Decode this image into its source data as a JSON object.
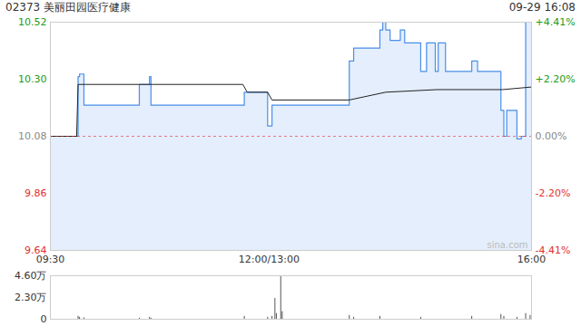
{
  "chart_data": [
    {
      "type": "line",
      "title": "02373 美丽田园医疗健康",
      "subtitle": "09-29 16:08",
      "watermark": "sina.com",
      "prev_close": 10.08,
      "xlim": [
        0,
        330
      ],
      "xticks": [
        {
          "value": 0,
          "label": "09:30"
        },
        {
          "value": 150,
          "label": "12:00/13:00"
        },
        {
          "value": 330,
          "label": "16:00"
        }
      ],
      "ylim": [
        9.64,
        10.52
      ],
      "yticks": [
        9.64,
        9.86,
        10.08,
        {
          "value": 10.3,
          "label": "10.30"
        },
        10.52
      ],
      "y2lim": [
        -4.41,
        4.41
      ],
      "y2ticks": [
        {
          "value": -4.41,
          "label": "-4.41%"
        },
        {
          "value": -2.2,
          "label": "-2.20%"
        },
        {
          "value": 0,
          "label": "0.00%"
        },
        {
          "value": 2.2,
          "label": "+2.20%"
        },
        {
          "value": 4.41,
          "label": "+4.41%"
        }
      ],
      "grid": false,
      "series": [
        {
          "type": "area",
          "color": "#4a8fe8",
          "x": [
            0,
            19,
            20,
            23,
            61,
            68,
            69,
            133,
            149,
            152,
            205,
            208,
            226,
            228,
            230,
            233,
            240,
            243,
            254,
            258,
            264,
            266,
            271,
            289,
            293,
            309,
            311,
            313,
            320,
            323,
            326,
            330
          ],
          "values": [
            10.08,
            10.31,
            10.32,
            10.2,
            10.28,
            10.31,
            10.2,
            10.25,
            10.12,
            10.2,
            10.37,
            10.42,
            10.49,
            10.52,
            10.49,
            10.45,
            10.49,
            10.44,
            10.33,
            10.44,
            10.33,
            10.44,
            10.33,
            10.37,
            10.33,
            10.18,
            10.08,
            10.18,
            10.07,
            10.08,
            10.52,
            10.52
          ]
        },
        {
          "type": "line",
          "color": "#222222",
          "x": [
            0,
            18,
            19,
            132,
            135,
            149,
            152,
            205,
            230,
            265,
            310,
            330
          ],
          "values": [
            10.08,
            10.08,
            10.28,
            10.28,
            10.25,
            10.25,
            10.22,
            10.22,
            10.25,
            10.26,
            10.26,
            10.27
          ]
        }
      ]
    },
    {
      "type": "bar",
      "xlim": [
        0,
        330
      ],
      "ylim": [
        0,
        4.6
      ],
      "yticks": [
        0,
        {
          "value": 2.3,
          "label": "2.30万"
        },
        {
          "value": 4.6,
          "label": "4.60万"
        }
      ],
      "color": "#555555",
      "x": [
        19,
        20,
        23,
        61,
        68,
        69,
        133,
        149,
        152,
        154,
        155,
        158,
        159,
        205,
        208,
        226,
        254,
        289,
        309,
        311,
        320,
        326,
        329
      ],
      "values": [
        0.3,
        0.2,
        0.15,
        0.1,
        0.2,
        0.1,
        0.3,
        0.2,
        0.3,
        2.2,
        0.6,
        4.5,
        0.8,
        0.4,
        0.2,
        0.3,
        0.2,
        0.3,
        0.5,
        0.3,
        0.2,
        0.6,
        0.4
      ]
    }
  ]
}
